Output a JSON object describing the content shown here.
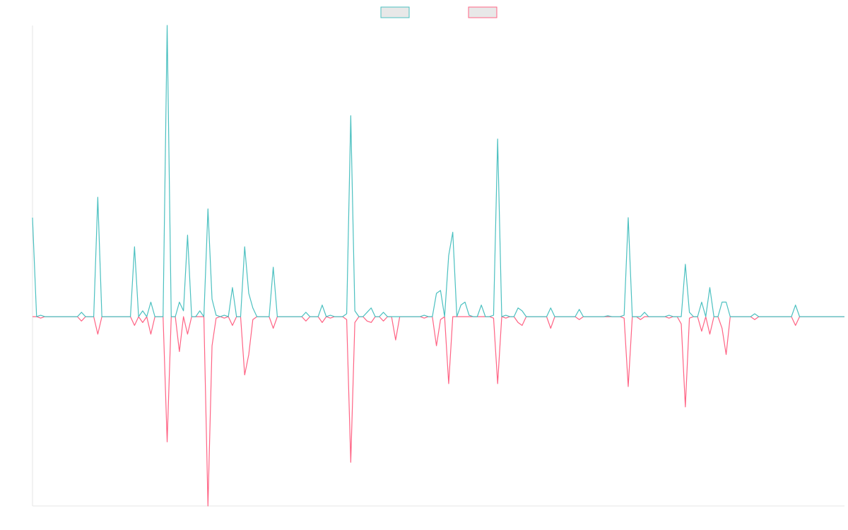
{
  "chart_data": {
    "type": "line",
    "legend": "top",
    "ylim": [
      -65,
      100
    ],
    "series": [
      {
        "color": "#ff6384",
        "values": [
          0,
          0,
          -0.5,
          0,
          0,
          0,
          0,
          0,
          0,
          0,
          0,
          0,
          -1.5,
          0,
          0,
          0,
          -6,
          0,
          0,
          0,
          0,
          0,
          0,
          0,
          0,
          -3,
          0,
          -2,
          0,
          -6,
          0,
          0,
          0,
          -43,
          0,
          0,
          -12,
          0,
          -6,
          0,
          0,
          0,
          0,
          -65,
          -10,
          -0.5,
          0,
          -0.5,
          0,
          -3,
          0,
          0,
          -20,
          -13,
          -1,
          0,
          0,
          0,
          0,
          -4,
          0,
          0,
          0,
          0,
          0,
          0,
          0,
          -1.5,
          0,
          0,
          0,
          -2,
          0,
          -0.5,
          0,
          0,
          0,
          -1,
          -50,
          -2,
          0,
          0,
          -1.5,
          -2,
          0,
          0,
          -1.5,
          0,
          0,
          -8,
          0,
          0,
          0,
          0,
          0,
          0,
          -0.5,
          0,
          0,
          -10,
          -1,
          0,
          -23,
          0,
          0,
          0,
          0,
          0,
          0,
          0,
          0,
          0,
          0,
          -0.5,
          -23,
          0,
          -0.5,
          0,
          0,
          -2,
          -3,
          0,
          0,
          0,
          0,
          0,
          0,
          -4,
          0,
          0,
          0,
          0,
          0,
          0,
          -1,
          0,
          0,
          0,
          0,
          0,
          0,
          0,
          0,
          0,
          0,
          -0.5,
          -24,
          0,
          0,
          -1,
          0,
          0,
          0,
          0,
          0,
          0,
          -0.5,
          0,
          0,
          -2.5,
          -31,
          -0.5,
          0,
          0,
          -5,
          0,
          -6,
          0,
          0,
          -4,
          -13,
          0,
          0,
          0,
          0,
          0,
          0,
          -1,
          0,
          0,
          0,
          0,
          0,
          0,
          0,
          0,
          0,
          -3,
          0,
          0,
          0,
          0,
          0,
          0,
          0,
          0,
          0,
          0,
          0,
          0
        ]
      },
      {
        "color": "#4bc0c0",
        "values": [
          34,
          0,
          0.5,
          0,
          0,
          0,
          0,
          0,
          0,
          0,
          0,
          0,
          1.5,
          0,
          0,
          0,
          41,
          0,
          0,
          0,
          0,
          0,
          0,
          0,
          0,
          24,
          0,
          2,
          0,
          5,
          0,
          0,
          0,
          100,
          0,
          0,
          5,
          2,
          28,
          0,
          0,
          2,
          0,
          37,
          6,
          0.5,
          0,
          0.5,
          0,
          10,
          0,
          0,
          24,
          8,
          3,
          0,
          0,
          0,
          0,
          17,
          0,
          0,
          0,
          0,
          0,
          0,
          0,
          1.5,
          0,
          0,
          0,
          4,
          0,
          0.5,
          0,
          0,
          0,
          1,
          69,
          2,
          0,
          0,
          1.5,
          3,
          0,
          0,
          1.5,
          0,
          0,
          0,
          0,
          0,
          0,
          0,
          0,
          0,
          0.5,
          0,
          0,
          8,
          9,
          0,
          21,
          29,
          0,
          4,
          5,
          0.5,
          0,
          0,
          4,
          0,
          0,
          0.5,
          61,
          0,
          0.5,
          0,
          0,
          3,
          2,
          0,
          0,
          0,
          0,
          0,
          0,
          3,
          0,
          0,
          0,
          0,
          0,
          0,
          2.5,
          0,
          0,
          0,
          0,
          0,
          0,
          0.3,
          0,
          0,
          0,
          0.5,
          34,
          0,
          0,
          0,
          1.5,
          0,
          0,
          0,
          0,
          0,
          0.5,
          0,
          0,
          0,
          18,
          1.5,
          0,
          0,
          5,
          0,
          10,
          0,
          0,
          5,
          5,
          0,
          0,
          0,
          0,
          0,
          0,
          1,
          0,
          0,
          0,
          0,
          0,
          0,
          0,
          0,
          0,
          4,
          0,
          0,
          0,
          0,
          0,
          0,
          0,
          0,
          0,
          0,
          0,
          0
        ]
      }
    ]
  }
}
